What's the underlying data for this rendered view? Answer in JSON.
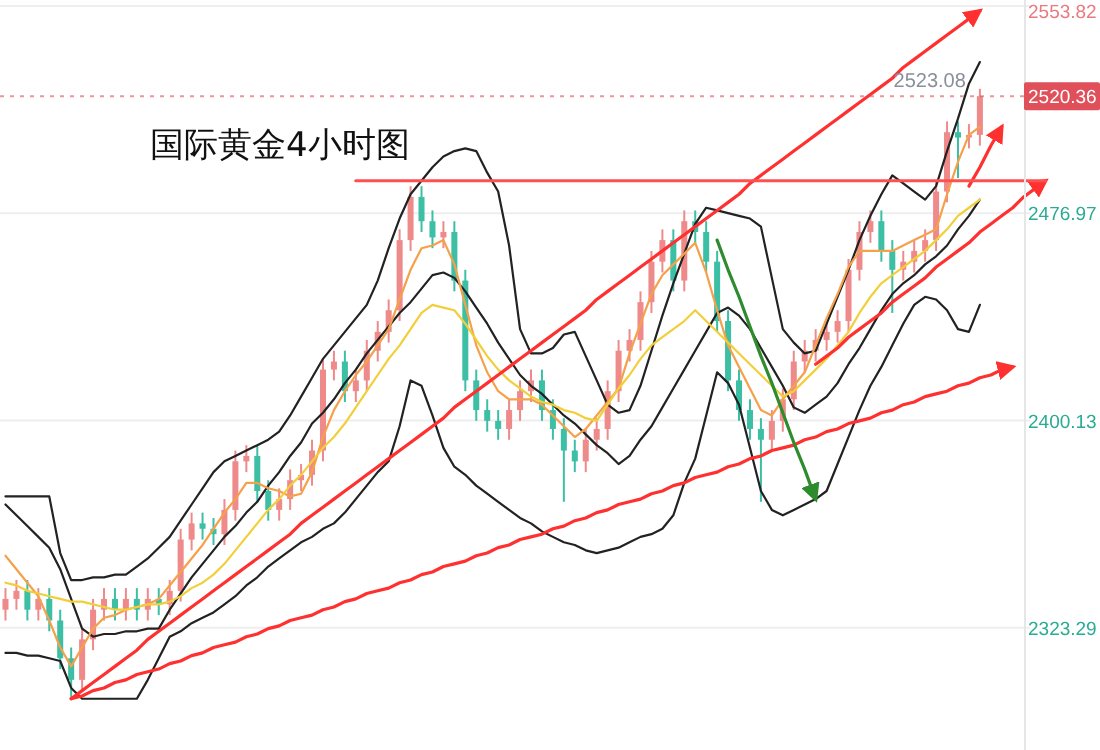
{
  "chart_data": {
    "type": "candlestick",
    "title": "国际黄金4小时图",
    "categories": [
      null,
      null,
      null,
      null,
      null,
      null,
      null,
      null,
      null,
      null,
      null,
      null,
      null,
      null,
      null,
      null,
      null,
      null,
      null,
      null,
      null,
      null,
      null,
      null,
      null,
      null,
      null,
      null,
      null,
      null,
      null,
      null,
      null,
      null,
      null,
      null,
      null,
      null,
      null,
      null,
      null,
      null,
      null,
      null,
      null,
      null,
      null,
      null,
      null,
      null,
      null,
      null,
      null,
      null,
      null,
      null,
      null,
      null,
      null,
      null,
      null,
      null,
      null,
      null,
      null,
      null,
      null,
      null,
      null,
      null,
      null,
      null,
      null,
      null,
      null,
      null,
      null,
      null,
      null,
      null,
      null,
      null,
      null,
      null,
      null,
      null,
      null,
      null,
      null,
      null,
      null,
      null,
      null,
      null,
      null,
      null,
      null
    ],
    "ohlc": [
      [
        2330,
        2338,
        2326,
        2334
      ],
      [
        2334,
        2341,
        2330,
        2337
      ],
      [
        2337,
        2341,
        2326,
        2330
      ],
      [
        2330,
        2338,
        2326,
        2334
      ],
      [
        2334,
        2338,
        2322,
        2326
      ],
      [
        2326,
        2330,
        2308,
        2312
      ],
      [
        2312,
        2316,
        2297,
        2304
      ],
      [
        2304,
        2323,
        2300,
        2319
      ],
      [
        2319,
        2334,
        2315,
        2330
      ],
      [
        2330,
        2338,
        2326,
        2334
      ],
      [
        2334,
        2338,
        2326,
        2330
      ],
      [
        2330,
        2338,
        2326,
        2334
      ],
      [
        2334,
        2338,
        2326,
        2330
      ],
      [
        2330,
        2338,
        2326,
        2334
      ],
      [
        2334,
        2338,
        2328,
        2332
      ],
      [
        2332,
        2341,
        2328,
        2337
      ],
      [
        2337,
        2360,
        2333,
        2356
      ],
      [
        2356,
        2366,
        2352,
        2362
      ],
      [
        2362,
        2366,
        2356,
        2360
      ],
      [
        2360,
        2364,
        2354,
        2358
      ],
      [
        2358,
        2371,
        2354,
        2367
      ],
      [
        2367,
        2389,
        2363,
        2385
      ],
      [
        2385,
        2391,
        2381,
        2387
      ],
      [
        2387,
        2391,
        2370,
        2374
      ],
      [
        2374,
        2378,
        2363,
        2367
      ],
      [
        2367,
        2375,
        2363,
        2371
      ],
      [
        2371,
        2382,
        2367,
        2378
      ],
      [
        2378,
        2384,
        2374,
        2380
      ],
      [
        2380,
        2393,
        2376,
        2389
      ],
      [
        2389,
        2423,
        2385,
        2419
      ],
      [
        2419,
        2426,
        2415,
        2422
      ],
      [
        2422,
        2426,
        2407,
        2411
      ],
      [
        2411,
        2419,
        2407,
        2415
      ],
      [
        2415,
        2430,
        2411,
        2426
      ],
      [
        2426,
        2437,
        2422,
        2433
      ],
      [
        2433,
        2445,
        2429,
        2441
      ],
      [
        2441,
        2471,
        2437,
        2467
      ],
      [
        2467,
        2487,
        2463,
        2483
      ],
      [
        2483,
        2487,
        2470,
        2474
      ],
      [
        2474,
        2478,
        2464,
        2468
      ],
      [
        2468,
        2474,
        2464,
        2470
      ],
      [
        2470,
        2474,
        2448,
        2452
      ],
      [
        2452,
        2456,
        2411,
        2415
      ],
      [
        2415,
        2419,
        2400,
        2404
      ],
      [
        2404,
        2408,
        2396,
        2400
      ],
      [
        2400,
        2404,
        2393,
        2397
      ],
      [
        2397,
        2408,
        2393,
        2404
      ],
      [
        2404,
        2415,
        2400,
        2411
      ],
      [
        2411,
        2419,
        2407,
        2415
      ],
      [
        2415,
        2419,
        2400,
        2404
      ],
      [
        2404,
        2408,
        2393,
        2397
      ],
      [
        2397,
        2401,
        2370,
        2389
      ],
      [
        2389,
        2393,
        2381,
        2385
      ],
      [
        2385,
        2397,
        2381,
        2393
      ],
      [
        2393,
        2401,
        2389,
        2397
      ],
      [
        2397,
        2415,
        2393,
        2411
      ],
      [
        2411,
        2430,
        2407,
        2426
      ],
      [
        2426,
        2434,
        2422,
        2430
      ],
      [
        2430,
        2448,
        2426,
        2444
      ],
      [
        2444,
        2463,
        2440,
        2459
      ],
      [
        2459,
        2471,
        2455,
        2467
      ],
      [
        2467,
        2471,
        2448,
        2452
      ],
      [
        2452,
        2478,
        2448,
        2474
      ],
      [
        2474,
        2478,
        2466,
        2470
      ],
      [
        2470,
        2474,
        2455,
        2459
      ],
      [
        2459,
        2463,
        2433,
        2437
      ],
      [
        2437,
        2441,
        2411,
        2415
      ],
      [
        2415,
        2419,
        2400,
        2404
      ],
      [
        2404,
        2408,
        2393,
        2397
      ],
      [
        2397,
        2401,
        2370,
        2393
      ],
      [
        2393,
        2404,
        2389,
        2400
      ],
      [
        2400,
        2412,
        2396,
        2408
      ],
      [
        2408,
        2426,
        2404,
        2422
      ],
      [
        2422,
        2430,
        2418,
        2426
      ],
      [
        2426,
        2434,
        2422,
        2430
      ],
      [
        2430,
        2437,
        2426,
        2433
      ],
      [
        2433,
        2441,
        2429,
        2437
      ],
      [
        2437,
        2460,
        2433,
        2456
      ],
      [
        2456,
        2474,
        2452,
        2470
      ],
      [
        2470,
        2478,
        2466,
        2474
      ],
      [
        2474,
        2478,
        2459,
        2463
      ],
      [
        2463,
        2467,
        2440,
        2456
      ],
      [
        2456,
        2463,
        2452,
        2459
      ],
      [
        2459,
        2467,
        2455,
        2463
      ],
      [
        2463,
        2471,
        2459,
        2467
      ],
      [
        2467,
        2489,
        2463,
        2485
      ],
      [
        2485,
        2511,
        2481,
        2507
      ],
      [
        2507,
        2511,
        2490,
        2505
      ],
      [
        2505,
        2510,
        2501,
        2506
      ],
      [
        2506,
        2523.08,
        2502,
        2520.36
      ],
      null,
      null,
      null,
      null,
      null,
      null,
      null
    ],
    "colors": [
      "#ef8a8a",
      "#ef8a8a",
      "#3cbfa5",
      "#ef8a8a",
      "#3cbfa5",
      "#3cbfa5",
      "#3cbfa5",
      "#ef8a8a",
      "#ef8a8a",
      "#ef8a8a",
      "#3cbfa5",
      "#ef8a8a",
      "#3cbfa5",
      "#ef8a8a",
      "#3cbfa5",
      "#ef8a8a",
      "#ef8a8a",
      "#ef8a8a",
      "#3cbfa5",
      "#3cbfa5",
      "#ef8a8a",
      "#ef8a8a",
      "#ef8a8a",
      "#3cbfa5",
      "#3cbfa5",
      "#ef8a8a",
      "#ef8a8a",
      "#ef8a8a",
      "#ef8a8a",
      "#ef8a8a",
      "#ef8a8a",
      "#3cbfa5",
      "#ef8a8a",
      "#ef8a8a",
      "#ef8a8a",
      "#ef8a8a",
      "#ef8a8a",
      "#ef8a8a",
      "#3cbfa5",
      "#3cbfa5",
      "#ef8a8a",
      "#3cbfa5",
      "#3cbfa5",
      "#3cbfa5",
      "#3cbfa5",
      "#3cbfa5",
      "#ef8a8a",
      "#ef8a8a",
      "#ef8a8a",
      "#3cbfa5",
      "#3cbfa5",
      "#3cbfa5",
      "#3cbfa5",
      "#ef8a8a",
      "#ef8a8a",
      "#ef8a8a",
      "#ef8a8a",
      "#ef8a8a",
      "#ef8a8a",
      "#ef8a8a",
      "#ef8a8a",
      "#3cbfa5",
      "#ef8a8a",
      "#3cbfa5",
      "#3cbfa5",
      "#3cbfa5",
      "#3cbfa5",
      "#3cbfa5",
      "#3cbfa5",
      "#3cbfa5",
      "#ef8a8a",
      "#ef8a8a",
      "#ef8a8a",
      "#ef8a8a",
      "#ef8a8a",
      "#ef8a8a",
      "#ef8a8a",
      "#ef8a8a",
      "#ef8a8a",
      "#ef8a8a",
      "#3cbfa5",
      "#3cbfa5",
      "#ef8a8a",
      "#ef8a8a",
      "#ef8a8a",
      "#ef8a8a",
      "#ef8a8a",
      "#3cbfa5",
      "#ef8a8a",
      "#ef8a8a",
      null,
      null,
      null,
      null,
      null,
      null,
      null
    ],
    "series": [
      {
        "type": "line",
        "color": "#222222",
        "values": [
          2372,
          2372,
          2372,
          2372,
          2372,
          2351,
          2341,
          2341,
          2342,
          2342,
          2343,
          2343,
          2346,
          2349,
          2353,
          2357,
          2363,
          2369,
          2375,
          2381,
          2385,
          2387,
          2389,
          2391,
          2393,
          2396,
          2402,
          2409,
          2416,
          2423,
          2428,
          2433,
          2438,
          2443,
          2452,
          2464,
          2475,
          2484,
          2489,
          2494,
          2498,
          2500,
          2501,
          2500,
          2492,
          2485,
          2465,
          2434,
          2425,
          2425,
          2427,
          2432,
          2433,
          2424,
          2415,
          2406,
          2403,
          2404,
          2413,
          2426,
          2439,
          2451,
          2462,
          2473,
          2479,
          2478,
          2477,
          2476,
          2475,
          2472,
          2453,
          2434,
          2429,
          2425,
          2426,
          2436,
          2446,
          2456,
          2467,
          2476,
          2484,
          2491,
          2488,
          2485,
          2482,
          2487,
          2500,
          2512,
          2525,
          2533,
          null,
          null,
          null,
          null,
          null,
          null,
          null
        ]
      },
      {
        "type": "line",
        "color": "#222222",
        "values": [
          2369,
          2365,
          2361,
          2357,
          2353,
          2345,
          2334,
          2323,
          2320,
          2321,
          2321,
          2322,
          2322,
          2323,
          2323,
          2330,
          2336,
          2342,
          2347,
          2352,
          2357,
          2361,
          2366,
          2370,
          2376,
          2381,
          2387,
          2392,
          2399,
          2403,
          2408,
          2414,
          2419,
          2425,
          2430,
          2435,
          2440,
          2444,
          2449,
          2454,
          2455,
          2453,
          2448,
          2442,
          2436,
          2429,
          2423,
          2417,
          2413,
          2410,
          2406,
          2402,
          2399,
          2395,
          2391,
          2388,
          2384,
          2387,
          2393,
          2398,
          2405,
          2412,
          2419,
          2426,
          2433,
          2440,
          2442,
          2439,
          2434,
          2427,
          2420,
          2413,
          2405,
          2403,
          2406,
          2409,
          2414,
          2421,
          2427,
          2434,
          2441,
          2447,
          2451,
          2454,
          2458,
          2461,
          2465,
          2471,
          2476,
          2482,
          null,
          null,
          null,
          null,
          null,
          null,
          null
        ]
      },
      {
        "type": "line",
        "color": "#222222",
        "values": [
          2314,
          2314,
          2313,
          2313,
          2312,
          2311,
          2301,
          2297,
          2297,
          2297,
          2297,
          2297,
          2297,
          2304,
          2312,
          2320,
          2322,
          2325,
          2327,
          2329,
          2332,
          2335,
          2339,
          2342,
          2346,
          2349,
          2352,
          2355,
          2357,
          2360,
          2362,
          2366,
          2371,
          2376,
          2381,
          2385,
          2398,
          2415,
          2413,
          2402,
          2390,
          2383,
          2380,
          2376,
          2373,
          2370,
          2367,
          2364,
          2362,
          2359,
          2357,
          2355,
          2354,
          2352,
          2351,
          2352,
          2353,
          2355,
          2357,
          2358,
          2360,
          2365,
          2377,
          2386,
          2402,
          2418,
          2414,
          2406,
          2390,
          2374,
          2367,
          2365,
          2367,
          2369,
          2371,
          2374,
          2384,
          2394,
          2404,
          2413,
          2420,
          2428,
          2436,
          2443,
          2446,
          2445,
          2441,
          2434,
          2433,
          2443,
          null,
          null,
          null,
          null,
          null,
          null,
          null
        ]
      },
      {
        "type": "line",
        "color": "#f5a04a",
        "values": [
          2350,
          2345,
          2340,
          2335,
          2326,
          2316,
          2309,
          2316,
          2323,
          2327,
          2328,
          2330,
          2331,
          2332,
          2334,
          2339,
          2344,
          2349,
          2354,
          2360,
          2366,
          2371,
          2377,
          2377,
          2375,
          2374,
          2372,
          2373,
          2381,
          2394,
          2404,
          2411,
          2417,
          2422,
          2428,
          2434,
          2445,
          2456,
          2464,
          2465,
          2467,
          2458,
          2443,
          2428,
          2418,
          2411,
          2408,
          2408,
          2408,
          2406,
          2402,
          2398,
          2394,
          2397,
          2402,
          2407,
          2412,
          2425,
          2436,
          2447,
          2454,
          2458,
          2462,
          2466,
          2455,
          2441,
          2428,
          2420,
          2412,
          2404,
          2402,
          2408,
          2413,
          2418,
          2428,
          2438,
          2447,
          2457,
          2463,
          2463,
          2463,
          2463,
          2465,
          2467,
          2469,
          2471,
          2484,
          2496,
          2506,
          2509,
          null,
          null,
          null,
          null,
          null,
          null,
          null
        ]
      },
      {
        "type": "line",
        "color": "#f2cf3a",
        "values": [
          2340,
          2339,
          2337,
          2336,
          2335,
          2334,
          2333,
          2333,
          2332,
          2331,
          2330,
          2330,
          2331,
          2332,
          2332,
          2333,
          2335,
          2338,
          2340,
          2343,
          2347,
          2352,
          2357,
          2362,
          2367,
          2371,
          2376,
          2380,
          2385,
          2390,
          2394,
          2399,
          2405,
          2411,
          2417,
          2423,
          2428,
          2434,
          2440,
          2443,
          2442,
          2441,
          2436,
          2430,
          2424,
          2419,
          2415,
          2412,
          2409,
          2407,
          2406,
          2404,
          2403,
          2401,
          2400,
          2406,
          2412,
          2417,
          2423,
          2428,
          2431,
          2434,
          2437,
          2441,
          2437,
          2433,
          2429,
          2425,
          2421,
          2417,
          2413,
          2409,
          2411,
          2415,
          2419,
          2423,
          2428,
          2433,
          2440,
          2446,
          2451,
          2454,
          2457,
          2460,
          2463,
          2467,
          2471,
          2476,
          2479,
          2482,
          null,
          null,
          null,
          null,
          null,
          null,
          null
        ]
      },
      {
        "type": "line",
        "color": "#ff3030",
        "values": [
          null,
          null,
          null,
          null,
          null,
          null,
          2297,
          2300,
          2303,
          2306,
          2309,
          2312,
          2315,
          2319,
          2322,
          2325,
          2328,
          2331,
          2334,
          2337,
          2340,
          2343,
          2346,
          2349,
          2352,
          2355,
          2358,
          2362,
          2365,
          2368,
          2371,
          2374,
          2377,
          2380,
          2383,
          2386,
          2389,
          2392,
          2395,
          2398,
          2401,
          2405,
          2408,
          2411,
          2414,
          2417,
          2420,
          2423,
          2426,
          2429,
          2432,
          2435,
          2438,
          2441,
          2445,
          2448,
          2451,
          2454,
          2457,
          2460,
          2463,
          2466,
          2469,
          2472,
          2475,
          2478,
          2481,
          2484,
          2488,
          2491,
          2494,
          2497,
          2500,
          2503,
          2506,
          2509,
          2512,
          2515,
          2518,
          2521,
          2524,
          2527,
          2531,
          2534,
          2537,
          2540,
          2543,
          2546,
          2549,
          2552,
          null,
          null,
          null,
          null,
          null,
          null,
          null
        ]
      },
      {
        "type": "line",
        "color": "#ff3030",
        "values": [
          null,
          null,
          null,
          null,
          null,
          null,
          2297,
          2298,
          2300,
          2301,
          2303,
          2304,
          2306,
          2307,
          2308,
          2310,
          2311,
          2313,
          2314,
          2316,
          2317,
          2318,
          2320,
          2321,
          2323,
          2324,
          2326,
          2327,
          2328,
          2330,
          2331,
          2333,
          2334,
          2336,
          2337,
          2338,
          2340,
          2341,
          2343,
          2344,
          2346,
          2347,
          2348,
          2350,
          2351,
          2353,
          2354,
          2356,
          2357,
          2358,
          2360,
          2361,
          2363,
          2364,
          2366,
          2367,
          2369,
          2370,
          2371,
          2373,
          2374,
          2376,
          2377,
          2379,
          2380,
          2381,
          2383,
          2384,
          2386,
          2387,
          2389,
          2390,
          2391,
          2393,
          2394,
          2396,
          2397,
          2399,
          2400,
          2401,
          2403,
          2404,
          2406,
          2407,
          2409,
          2410,
          2411,
          2413,
          2414,
          2416,
          2417,
          2419,
          2420,
          null,
          null,
          null,
          null
        ]
      },
      {
        "type": "line",
        "color": "#ff3030",
        "values": [
          null,
          null,
          null,
          null,
          null,
          null,
          null,
          null,
          null,
          null,
          null,
          null,
          null,
          null,
          null,
          null,
          null,
          null,
          null,
          null,
          null,
          null,
          null,
          null,
          null,
          null,
          null,
          null,
          null,
          null,
          null,
          null,
          null,
          null,
          null,
          null,
          null,
          null,
          null,
          null,
          null,
          null,
          null,
          null,
          null,
          null,
          null,
          null,
          null,
          null,
          null,
          null,
          null,
          null,
          null,
          null,
          null,
          null,
          null,
          null,
          null,
          null,
          null,
          null,
          null,
          null,
          null,
          null,
          null,
          null,
          null,
          null,
          null,
          null,
          2421,
          2424,
          2427,
          2431,
          2434,
          2437,
          2440,
          2444,
          2447,
          2450,
          2453,
          2457,
          2460,
          2463,
          2466,
          2470,
          2473,
          2476,
          2479,
          2483,
          2486,
          2489,
          null
        ]
      },
      {
        "type": "line",
        "color": "#ff3030",
        "values": [
          null,
          null,
          null,
          null,
          null,
          null,
          null,
          null,
          null,
          null,
          null,
          null,
          null,
          null,
          null,
          null,
          null,
          null,
          null,
          null,
          null,
          null,
          null,
          null,
          null,
          null,
          null,
          null,
          null,
          null,
          null,
          null,
          null,
          null,
          null,
          null,
          null,
          null,
          null,
          null,
          null,
          null,
          null,
          null,
          null,
          null,
          null,
          null,
          null,
          null,
          null,
          null,
          null,
          null,
          null,
          null,
          null,
          null,
          null,
          null,
          null,
          null,
          null,
          null,
          null,
          null,
          null,
          null,
          null,
          null,
          null,
          null,
          null,
          null,
          null,
          null,
          null,
          null,
          null,
          null,
          null,
          null,
          null,
          null,
          null,
          null,
          null,
          null,
          2487,
          2494,
          2502,
          2509,
          null,
          null,
          null,
          null,
          null
        ]
      },
      {
        "type": "line",
        "color": "#ff5050",
        "values": [
          null,
          null,
          null,
          null,
          null,
          null,
          null,
          null,
          null,
          null,
          null,
          null,
          null,
          null,
          null,
          null,
          null,
          null,
          null,
          null,
          null,
          null,
          null,
          null,
          null,
          null,
          null,
          null,
          null,
          null,
          null,
          null,
          2489,
          2489,
          2489,
          2489,
          2489,
          2489,
          2489,
          2489,
          2489,
          2489,
          2489,
          2489,
          2489,
          2489,
          2489,
          2489,
          2489,
          2489,
          2489,
          2489,
          2489,
          2489,
          2489,
          2489,
          2489,
          2489,
          2489,
          2489,
          2489,
          2489,
          2489,
          2489,
          2489,
          2489,
          2489,
          2489,
          2489,
          2489,
          2489,
          2489,
          2489,
          2489,
          2489,
          2489,
          2489,
          2489,
          2489,
          2489,
          2489,
          2489,
          2489,
          2489,
          2489,
          2489,
          2489,
          2489,
          2489,
          2489,
          2489,
          2489,
          2489,
          2489,
          2489,
          2489,
          null
        ]
      },
      {
        "type": "line",
        "color": "#2e8b2e",
        "values": [
          null,
          null,
          null,
          null,
          null,
          null,
          null,
          null,
          null,
          null,
          null,
          null,
          null,
          null,
          null,
          null,
          null,
          null,
          null,
          null,
          null,
          null,
          null,
          null,
          null,
          null,
          null,
          null,
          null,
          null,
          null,
          null,
          null,
          null,
          null,
          null,
          null,
          null,
          null,
          null,
          null,
          null,
          null,
          null,
          null,
          null,
          null,
          null,
          null,
          null,
          null,
          null,
          null,
          null,
          null,
          null,
          null,
          null,
          null,
          null,
          null,
          null,
          null,
          null,
          null,
          2467,
          2456,
          2446,
          2435,
          2424,
          2414,
          2403,
          2392,
          2382,
          2371,
          null,
          null,
          null,
          null,
          null,
          null,
          null,
          null,
          null,
          null,
          null,
          null,
          null,
          null,
          null,
          null,
          null,
          null,
          null,
          null,
          null,
          null
        ]
      }
    ],
    "ylim": [
      2278,
      2556
    ],
    "yticks": [
      2553.82,
      2476.97,
      2400.13,
      2323.29
    ],
    "grid": "y",
    "ref_lines": [
      {
        "axis": "y",
        "value": 2520.36,
        "label": "2520.36",
        "color": "#e0505a",
        "line_style": "dotted"
      }
    ],
    "annotations": [
      {
        "text": "2523.08",
        "y": 2523.08
      }
    ]
  }
}
